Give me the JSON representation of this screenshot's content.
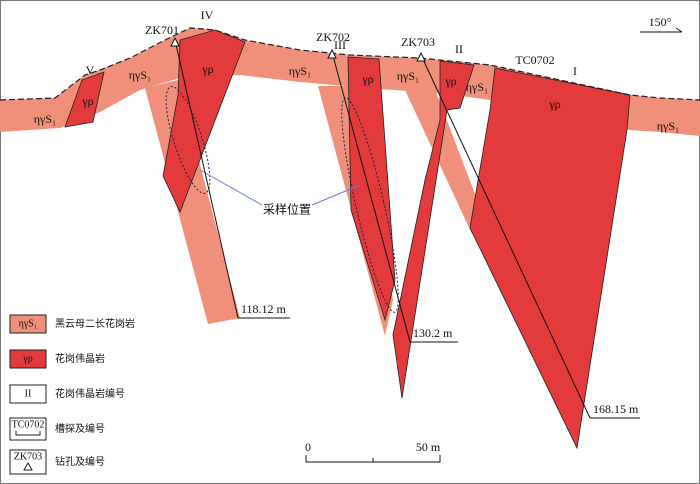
{
  "orientation": "150°",
  "rock_labels": {
    "granite": "ηγS₁",
    "pegmatite": "γρ"
  },
  "pegmatite_ids": [
    "I",
    "II",
    "III",
    "IV",
    "V"
  ],
  "trench": "TC0702",
  "drillholes": [
    {
      "id": "ZK701",
      "depth": "118.12 m"
    },
    {
      "id": "ZK702",
      "depth": "130.2 m"
    },
    {
      "id": "ZK703",
      "depth": "168.15 m"
    }
  ],
  "annotation": "采样位置",
  "legend": [
    {
      "symbol": "ηγS₁",
      "label": "黑云母二长花岗岩"
    },
    {
      "symbol": "γρ",
      "label": "花岗伟晶岩"
    },
    {
      "symbol": "II",
      "label": "花岗伟晶岩编号"
    },
    {
      "symbol": "TC0702",
      "label": "槽探及编号"
    },
    {
      "symbol": "ZK703",
      "label": "钻孔及编号"
    }
  ],
  "scale_bar": {
    "start": "0",
    "end": "50 m"
  }
}
